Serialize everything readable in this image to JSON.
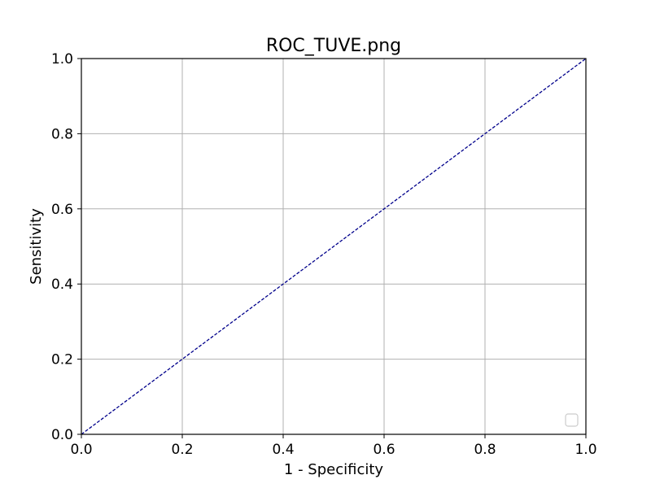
{
  "chart_data": {
    "type": "line",
    "title": "ROC_TUVE.png",
    "xlabel": "1 - Specificity",
    "ylabel": "Sensitivity",
    "xlim": [
      0.0,
      1.0
    ],
    "ylim": [
      0.0,
      1.0
    ],
    "x_ticks": [
      0.0,
      0.2,
      0.4,
      0.6,
      0.8,
      1.0
    ],
    "y_ticks": [
      0.0,
      0.2,
      0.4,
      0.6,
      0.8,
      1.0
    ],
    "x_tick_labels": [
      "0.0",
      "0.2",
      "0.4",
      "0.6",
      "0.8",
      "1.0"
    ],
    "y_tick_labels": [
      "0.0",
      "0.2",
      "0.4",
      "0.6",
      "0.8",
      "1.0"
    ],
    "grid": true,
    "legend": {
      "placement": "lower-right",
      "entries": []
    },
    "series": [
      {
        "x": [
          0.0,
          1.0
        ],
        "y": [
          0.0,
          1.0
        ],
        "style": "dashed",
        "color": "#00008b"
      }
    ]
  }
}
